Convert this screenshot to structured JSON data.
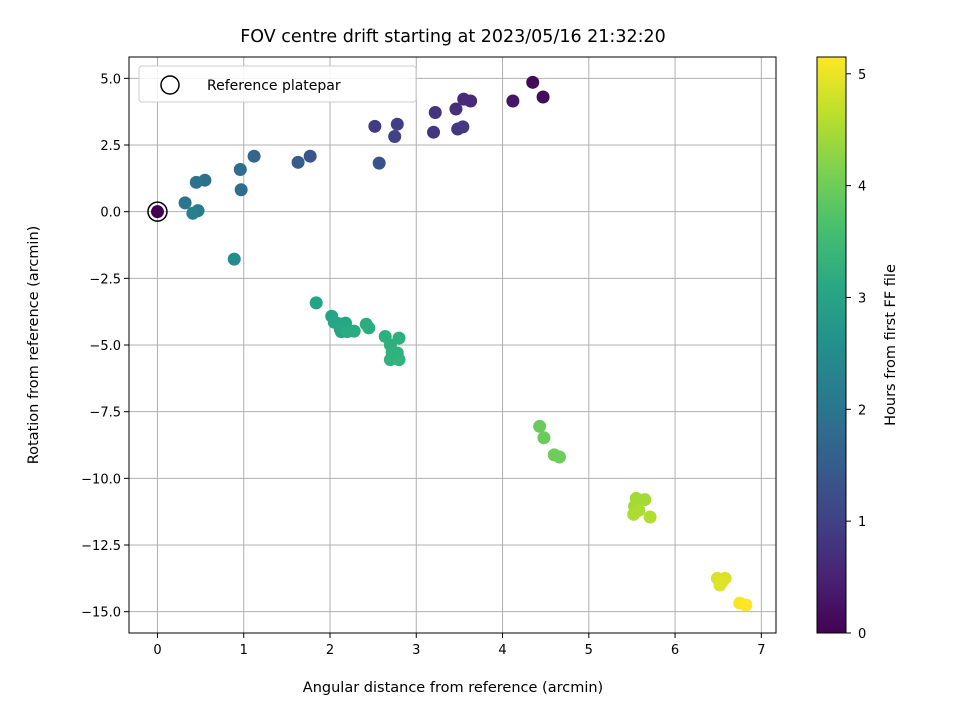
{
  "chart_data": {
    "type": "scatter",
    "title": "FOV centre drift starting at 2023/05/16 21:32:20",
    "xlabel": "Angular distance from reference (arcmin)",
    "ylabel": "Rotation from reference (arcmin)",
    "xlim": [
      -0.33,
      7.17
    ],
    "ylim": [
      -15.8,
      5.8
    ],
    "xticks": [
      0,
      1,
      2,
      3,
      4,
      5,
      6,
      7
    ],
    "yticks": [
      5.0,
      2.5,
      0.0,
      -2.5,
      -5.0,
      -7.5,
      -10.0,
      -12.5,
      -15.0
    ],
    "grid": true,
    "legend": {
      "placement": "upper-left",
      "entries": [
        "Reference platepar"
      ]
    },
    "reference_point": {
      "x": 0,
      "y": 0
    },
    "colorbar": {
      "label": "Hours from first FF file",
      "colormap": "viridis",
      "range": [
        0,
        5.15
      ],
      "ticks": [
        0,
        1,
        2,
        3,
        4,
        5
      ]
    },
    "points": [
      {
        "x": 0.0,
        "y": 0.0,
        "c": 0.0
      },
      {
        "x": 4.35,
        "y": 4.85,
        "c": 0.1
      },
      {
        "x": 4.47,
        "y": 4.3,
        "c": 0.15
      },
      {
        "x": 4.12,
        "y": 4.15,
        "c": 0.3
      },
      {
        "x": 3.55,
        "y": 4.22,
        "c": 0.6
      },
      {
        "x": 3.63,
        "y": 4.15,
        "c": 0.62
      },
      {
        "x": 3.46,
        "y": 3.85,
        "c": 0.7
      },
      {
        "x": 3.22,
        "y": 3.72,
        "c": 0.75
      },
      {
        "x": 3.2,
        "y": 2.98,
        "c": 0.8
      },
      {
        "x": 3.48,
        "y": 3.1,
        "c": 0.82
      },
      {
        "x": 3.54,
        "y": 3.18,
        "c": 0.85
      },
      {
        "x": 2.52,
        "y": 3.2,
        "c": 0.9
      },
      {
        "x": 2.78,
        "y": 3.28,
        "c": 0.95
      },
      {
        "x": 2.75,
        "y": 2.82,
        "c": 1.0
      },
      {
        "x": 2.57,
        "y": 1.82,
        "c": 1.3
      },
      {
        "x": 1.77,
        "y": 2.08,
        "c": 1.35
      },
      {
        "x": 1.63,
        "y": 1.85,
        "c": 1.5
      },
      {
        "x": 1.12,
        "y": 2.08,
        "c": 1.65
      },
      {
        "x": 0.96,
        "y": 1.58,
        "c": 1.8
      },
      {
        "x": 0.97,
        "y": 0.82,
        "c": 1.8
      },
      {
        "x": 0.55,
        "y": 1.18,
        "c": 1.9
      },
      {
        "x": 0.45,
        "y": 1.1,
        "c": 1.95
      },
      {
        "x": 0.32,
        "y": 0.33,
        "c": 2.0
      },
      {
        "x": 0.47,
        "y": 0.04,
        "c": 2.1
      },
      {
        "x": 0.41,
        "y": -0.06,
        "c": 2.25
      },
      {
        "x": 0.89,
        "y": -1.78,
        "c": 2.5
      },
      {
        "x": 1.84,
        "y": -3.42,
        "c": 3.0
      },
      {
        "x": 2.02,
        "y": -3.92,
        "c": 3.0
      },
      {
        "x": 2.05,
        "y": -4.15,
        "c": 3.05
      },
      {
        "x": 2.1,
        "y": -4.2,
        "c": 3.05
      },
      {
        "x": 2.18,
        "y": -4.18,
        "c": 3.05
      },
      {
        "x": 2.12,
        "y": -4.42,
        "c": 3.1
      },
      {
        "x": 2.13,
        "y": -4.5,
        "c": 3.1
      },
      {
        "x": 2.2,
        "y": -4.5,
        "c": 3.15
      },
      {
        "x": 2.28,
        "y": -4.48,
        "c": 3.15
      },
      {
        "x": 2.42,
        "y": -4.22,
        "c": 3.15
      },
      {
        "x": 2.45,
        "y": -4.36,
        "c": 3.2
      },
      {
        "x": 2.64,
        "y": -4.68,
        "c": 3.25
      },
      {
        "x": 2.7,
        "y": -5.0,
        "c": 3.25
      },
      {
        "x": 2.8,
        "y": -4.74,
        "c": 3.25
      },
      {
        "x": 2.72,
        "y": -5.28,
        "c": 3.3
      },
      {
        "x": 2.78,
        "y": -5.3,
        "c": 3.3
      },
      {
        "x": 2.7,
        "y": -5.55,
        "c": 3.3
      },
      {
        "x": 2.8,
        "y": -5.55,
        "c": 3.35
      },
      {
        "x": 4.43,
        "y": -8.05,
        "c": 3.95
      },
      {
        "x": 4.48,
        "y": -8.48,
        "c": 3.95
      },
      {
        "x": 4.6,
        "y": -9.12,
        "c": 4.0
      },
      {
        "x": 4.66,
        "y": -9.2,
        "c": 4.0
      },
      {
        "x": 5.55,
        "y": -10.75,
        "c": 4.45
      },
      {
        "x": 5.65,
        "y": -10.8,
        "c": 4.45
      },
      {
        "x": 5.53,
        "y": -11.05,
        "c": 4.45
      },
      {
        "x": 5.58,
        "y": -11.2,
        "c": 4.5
      },
      {
        "x": 5.52,
        "y": -11.35,
        "c": 4.5
      },
      {
        "x": 5.71,
        "y": -11.45,
        "c": 4.55
      },
      {
        "x": 6.49,
        "y": -13.75,
        "c": 4.85
      },
      {
        "x": 6.58,
        "y": -13.75,
        "c": 4.85
      },
      {
        "x": 6.54,
        "y": -13.9,
        "c": 4.9
      },
      {
        "x": 6.52,
        "y": -14.0,
        "c": 4.9
      },
      {
        "x": 6.75,
        "y": -14.68,
        "c": 5.1
      },
      {
        "x": 6.82,
        "y": -14.75,
        "c": 5.15
      }
    ]
  }
}
